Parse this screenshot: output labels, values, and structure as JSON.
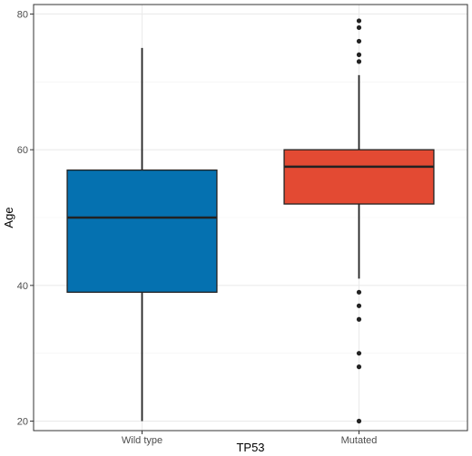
{
  "chart_data": {
    "type": "box",
    "title": "",
    "xlabel": "TP53",
    "ylabel": "Age",
    "ylim": [
      18.6,
      81.4
    ],
    "y_ticks": [
      20,
      40,
      60,
      80
    ],
    "grid": true,
    "categories": [
      "Wild type",
      "Mutated"
    ],
    "boxes": [
      {
        "category": "Wild type",
        "whisker_low": 20,
        "q1": 39,
        "median": 50,
        "q3": 57,
        "whisker_high": 75,
        "outliers": [],
        "color": "#0571b0"
      },
      {
        "category": "Mutated",
        "whisker_low": 41,
        "q1": 52,
        "median": 57.5,
        "q3": 60,
        "whisker_high": 71,
        "outliers": [
          20,
          28,
          30,
          35,
          37,
          39,
          73,
          74,
          76,
          78,
          79
        ],
        "color": "#e34a33"
      }
    ]
  }
}
